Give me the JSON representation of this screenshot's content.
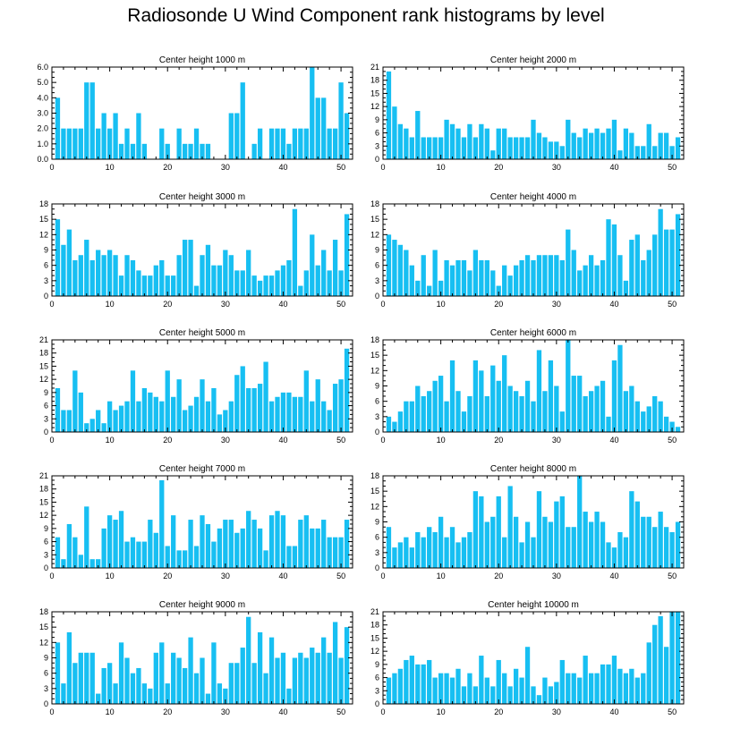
{
  "title": "Radiosonde U Wind Component rank histograms by level",
  "colors": {
    "bar": "#17bff2",
    "axis": "#000000"
  },
  "chart_data": [
    {
      "type": "bar",
      "title": "Center height 1000 m",
      "x": [
        1,
        2,
        3,
        4,
        5,
        6,
        7,
        8,
        9,
        10,
        11,
        12,
        13,
        14,
        15,
        16,
        17,
        18,
        19,
        20,
        21,
        22,
        23,
        24,
        25,
        26,
        27,
        28,
        29,
        30,
        31,
        32,
        33,
        34,
        35,
        36,
        37,
        38,
        39,
        40,
        41,
        42,
        43,
        44,
        45,
        46,
        47,
        48,
        49,
        50,
        51
      ],
      "values": [
        4,
        2,
        2,
        2,
        2,
        5,
        5,
        2,
        3,
        2,
        3,
        1,
        2,
        1,
        3,
        1,
        0,
        0,
        2,
        1,
        0,
        2,
        1,
        1,
        2,
        1,
        1,
        0,
        0,
        0,
        3,
        3,
        5,
        0,
        1,
        2,
        0,
        2,
        2,
        2,
        1,
        2,
        2,
        2,
        6,
        4,
        4,
        2,
        2,
        5,
        3
      ],
      "xlim": [
        0,
        52
      ],
      "ylim": [
        0,
        6
      ],
      "yticks": [
        0,
        1,
        2,
        3,
        4,
        5,
        6
      ],
      "ytick_labels": [
        "0.0",
        "1.0",
        "2.0",
        "3.0",
        "4.0",
        "5.0",
        "6.0"
      ],
      "xticks": [
        0,
        10,
        20,
        30,
        40,
        50
      ],
      "xtick_labels": [
        "0",
        "10",
        "20",
        "30",
        "40",
        "50"
      ]
    },
    {
      "type": "bar",
      "title": "Center height 2000 m",
      "x": [
        1,
        2,
        3,
        4,
        5,
        6,
        7,
        8,
        9,
        10,
        11,
        12,
        13,
        14,
        15,
        16,
        17,
        18,
        19,
        20,
        21,
        22,
        23,
        24,
        25,
        26,
        27,
        28,
        29,
        30,
        31,
        32,
        33,
        34,
        35,
        36,
        37,
        38,
        39,
        40,
        41,
        42,
        43,
        44,
        45,
        46,
        47,
        48,
        49,
        50,
        51
      ],
      "values": [
        20,
        12,
        8,
        7,
        5,
        11,
        5,
        5,
        5,
        5,
        9,
        8,
        7,
        5,
        8,
        5,
        8,
        7,
        2,
        7,
        7,
        5,
        5,
        5,
        5,
        9,
        6,
        5,
        4,
        4,
        3,
        9,
        6,
        5,
        7,
        6,
        7,
        6,
        7,
        9,
        2,
        7,
        6,
        3,
        3,
        8,
        3,
        6,
        6,
        3,
        5
      ],
      "xlim": [
        0,
        52
      ],
      "ylim": [
        0,
        21
      ],
      "yticks": [
        0,
        3,
        6,
        9,
        12,
        15,
        18,
        21
      ],
      "ytick_labels": [
        "0",
        "3",
        "6",
        "9",
        "12",
        "15",
        "18",
        "21"
      ],
      "xticks": [
        0,
        10,
        20,
        30,
        40,
        50
      ],
      "xtick_labels": [
        "0",
        "10",
        "20",
        "30",
        "40",
        "50"
      ]
    },
    {
      "type": "bar",
      "title": "Center height 3000 m",
      "x": [
        1,
        2,
        3,
        4,
        5,
        6,
        7,
        8,
        9,
        10,
        11,
        12,
        13,
        14,
        15,
        16,
        17,
        18,
        19,
        20,
        21,
        22,
        23,
        24,
        25,
        26,
        27,
        28,
        29,
        30,
        31,
        32,
        33,
        34,
        35,
        36,
        37,
        38,
        39,
        40,
        41,
        42,
        43,
        44,
        45,
        46,
        47,
        48,
        49,
        50,
        51
      ],
      "values": [
        15,
        10,
        13,
        7,
        8,
        11,
        7,
        9,
        8,
        9,
        8,
        4,
        8,
        7,
        5,
        4,
        4,
        6,
        7,
        4,
        4,
        8,
        11,
        11,
        2,
        8,
        10,
        6,
        6,
        9,
        8,
        5,
        5,
        9,
        4,
        3,
        4,
        4,
        5,
        6,
        7,
        17,
        2,
        5,
        12,
        6,
        9,
        5,
        11,
        5,
        16
      ],
      "xlim": [
        0,
        52
      ],
      "ylim": [
        0,
        18
      ],
      "yticks": [
        0,
        3,
        6,
        9,
        12,
        15,
        18
      ],
      "ytick_labels": [
        "0",
        "3",
        "6",
        "9",
        "12",
        "15",
        "18"
      ],
      "xticks": [
        0,
        10,
        20,
        30,
        40,
        50
      ],
      "xtick_labels": [
        "0",
        "10",
        "20",
        "30",
        "40",
        "50"
      ]
    },
    {
      "type": "bar",
      "title": "Center height 4000 m",
      "x": [
        1,
        2,
        3,
        4,
        5,
        6,
        7,
        8,
        9,
        10,
        11,
        12,
        13,
        14,
        15,
        16,
        17,
        18,
        19,
        20,
        21,
        22,
        23,
        24,
        25,
        26,
        27,
        28,
        29,
        30,
        31,
        32,
        33,
        34,
        35,
        36,
        37,
        38,
        39,
        40,
        41,
        42,
        43,
        44,
        45,
        46,
        47,
        48,
        49,
        50,
        51
      ],
      "values": [
        12,
        11,
        10,
        9,
        6,
        3,
        8,
        2,
        9,
        3,
        7,
        6,
        7,
        7,
        5,
        9,
        7,
        7,
        5,
        2,
        6,
        4,
        6,
        7,
        8,
        7,
        8,
        8,
        8,
        8,
        7,
        13,
        9,
        5,
        6,
        8,
        6,
        7,
        15,
        14,
        8,
        3,
        11,
        12,
        7,
        9,
        12,
        17,
        13,
        13,
        16
      ],
      "xlim": [
        0,
        52
      ],
      "ylim": [
        0,
        18
      ],
      "yticks": [
        0,
        3,
        6,
        9,
        12,
        15,
        18
      ],
      "ytick_labels": [
        "0",
        "3",
        "6",
        "9",
        "12",
        "15",
        "18"
      ],
      "xticks": [
        0,
        10,
        20,
        30,
        40,
        50
      ],
      "xtick_labels": [
        "0",
        "10",
        "20",
        "30",
        "40",
        "50"
      ]
    },
    {
      "type": "bar",
      "title": "Center height 5000 m",
      "x": [
        1,
        2,
        3,
        4,
        5,
        6,
        7,
        8,
        9,
        10,
        11,
        12,
        13,
        14,
        15,
        16,
        17,
        18,
        19,
        20,
        21,
        22,
        23,
        24,
        25,
        26,
        27,
        28,
        29,
        30,
        31,
        32,
        33,
        34,
        35,
        36,
        37,
        38,
        39,
        40,
        41,
        42,
        43,
        44,
        45,
        46,
        47,
        48,
        49,
        50,
        51
      ],
      "values": [
        10,
        5,
        5,
        14,
        9,
        2,
        3,
        5,
        2,
        7,
        5,
        6,
        7,
        14,
        7,
        10,
        9,
        8,
        7,
        14,
        8,
        12,
        5,
        6,
        8,
        12,
        7,
        10,
        4,
        5,
        7,
        13,
        15,
        10,
        10,
        11,
        16,
        7,
        8,
        9,
        9,
        8,
        8,
        14,
        7,
        12,
        7,
        5,
        11,
        12,
        19
      ],
      "xlim": [
        0,
        52
      ],
      "ylim": [
        0,
        21
      ],
      "yticks": [
        0,
        3,
        6,
        9,
        12,
        15,
        18,
        21
      ],
      "ytick_labels": [
        "0",
        "3",
        "6",
        "9",
        "12",
        "15",
        "18",
        "21"
      ],
      "xticks": [
        0,
        10,
        20,
        30,
        40,
        50
      ],
      "xtick_labels": [
        "0",
        "10",
        "20",
        "30",
        "40",
        "50"
      ]
    },
    {
      "type": "bar",
      "title": "Center height 6000 m",
      "x": [
        1,
        2,
        3,
        4,
        5,
        6,
        7,
        8,
        9,
        10,
        11,
        12,
        13,
        14,
        15,
        16,
        17,
        18,
        19,
        20,
        21,
        22,
        23,
        24,
        25,
        26,
        27,
        28,
        29,
        30,
        31,
        32,
        33,
        34,
        35,
        36,
        37,
        38,
        39,
        40,
        41,
        42,
        43,
        44,
        45,
        46,
        47,
        48,
        49,
        50,
        51
      ],
      "values": [
        3,
        2,
        4,
        6,
        6,
        9,
        7,
        8,
        10,
        11,
        6,
        14,
        8,
        4,
        7,
        14,
        12,
        7,
        13,
        10,
        15,
        9,
        8,
        7,
        10,
        6,
        16,
        8,
        14,
        9,
        4,
        18,
        11,
        11,
        7,
        8,
        9,
        10,
        3,
        14,
        17,
        8,
        9,
        6,
        4,
        5,
        7,
        6,
        3,
        2,
        1
      ],
      "xlim": [
        0,
        52
      ],
      "ylim": [
        0,
        18
      ],
      "yticks": [
        0,
        3,
        6,
        9,
        12,
        15,
        18
      ],
      "ytick_labels": [
        "0",
        "3",
        "6",
        "9",
        "12",
        "15",
        "18"
      ],
      "xticks": [
        0,
        10,
        20,
        30,
        40,
        50
      ],
      "xtick_labels": [
        "0",
        "10",
        "20",
        "30",
        "40",
        "50"
      ]
    },
    {
      "type": "bar",
      "title": "Center height 7000 m",
      "x": [
        1,
        2,
        3,
        4,
        5,
        6,
        7,
        8,
        9,
        10,
        11,
        12,
        13,
        14,
        15,
        16,
        17,
        18,
        19,
        20,
        21,
        22,
        23,
        24,
        25,
        26,
        27,
        28,
        29,
        30,
        31,
        32,
        33,
        34,
        35,
        36,
        37,
        38,
        39,
        40,
        41,
        42,
        43,
        44,
        45,
        46,
        47,
        48,
        49,
        50,
        51
      ],
      "values": [
        7,
        2,
        10,
        7,
        3,
        14,
        2,
        2,
        9,
        12,
        11,
        13,
        6,
        7,
        6,
        6,
        11,
        8,
        20,
        5,
        12,
        4,
        4,
        11,
        5,
        12,
        10,
        6,
        9,
        11,
        11,
        8,
        9,
        13,
        11,
        9,
        4,
        12,
        13,
        12,
        5,
        5,
        11,
        12,
        9,
        9,
        11,
        7,
        7,
        7,
        11
      ],
      "xlim": [
        0,
        52
      ],
      "ylim": [
        0,
        21
      ],
      "yticks": [
        0,
        3,
        6,
        9,
        12,
        15,
        18,
        21
      ],
      "ytick_labels": [
        "0",
        "3",
        "6",
        "9",
        "12",
        "15",
        "18",
        "21"
      ],
      "xticks": [
        0,
        10,
        20,
        30,
        40,
        50
      ],
      "xtick_labels": [
        "0",
        "10",
        "20",
        "30",
        "40",
        "50"
      ]
    },
    {
      "type": "bar",
      "title": "Center height 8000 m",
      "x": [
        1,
        2,
        3,
        4,
        5,
        6,
        7,
        8,
        9,
        10,
        11,
        12,
        13,
        14,
        15,
        16,
        17,
        18,
        19,
        20,
        21,
        22,
        23,
        24,
        25,
        26,
        27,
        28,
        29,
        30,
        31,
        32,
        33,
        34,
        35,
        36,
        37,
        38,
        39,
        40,
        41,
        42,
        43,
        44,
        45,
        46,
        47,
        48,
        49,
        50,
        51
      ],
      "values": [
        8,
        4,
        5,
        6,
        4,
        7,
        6,
        8,
        7,
        10,
        6,
        8,
        5,
        6,
        7,
        15,
        14,
        9,
        10,
        14,
        6,
        16,
        10,
        5,
        9,
        6,
        15,
        10,
        9,
        13,
        14,
        8,
        8,
        18,
        11,
        9,
        11,
        9,
        5,
        4,
        7,
        6,
        15,
        13,
        10,
        10,
        8,
        11,
        8,
        7,
        9
      ],
      "xlim": [
        0,
        52
      ],
      "ylim": [
        0,
        18
      ],
      "yticks": [
        0,
        3,
        6,
        9,
        12,
        15,
        18
      ],
      "ytick_labels": [
        "0",
        "3",
        "6",
        "9",
        "12",
        "15",
        "18"
      ],
      "xticks": [
        0,
        10,
        20,
        30,
        40,
        50
      ],
      "xtick_labels": [
        "0",
        "10",
        "20",
        "30",
        "40",
        "50"
      ]
    },
    {
      "type": "bar",
      "title": "Center height 9000 m",
      "x": [
        1,
        2,
        3,
        4,
        5,
        6,
        7,
        8,
        9,
        10,
        11,
        12,
        13,
        14,
        15,
        16,
        17,
        18,
        19,
        20,
        21,
        22,
        23,
        24,
        25,
        26,
        27,
        28,
        29,
        30,
        31,
        32,
        33,
        34,
        35,
        36,
        37,
        38,
        39,
        40,
        41,
        42,
        43,
        44,
        45,
        46,
        47,
        48,
        49,
        50,
        51
      ],
      "values": [
        12,
        4,
        14,
        8,
        10,
        10,
        10,
        2,
        7,
        8,
        4,
        12,
        9,
        6,
        7,
        4,
        3,
        10,
        12,
        4,
        10,
        9,
        7,
        13,
        6,
        9,
        2,
        12,
        4,
        3,
        8,
        8,
        11,
        17,
        8,
        14,
        6,
        13,
        9,
        10,
        3,
        9,
        10,
        9,
        11,
        10,
        13,
        10,
        16,
        9,
        15
      ],
      "xlim": [
        0,
        52
      ],
      "ylim": [
        0,
        18
      ],
      "yticks": [
        0,
        3,
        6,
        9,
        12,
        15,
        18
      ],
      "ytick_labels": [
        "0",
        "3",
        "6",
        "9",
        "12",
        "15",
        "18"
      ],
      "xticks": [
        0,
        10,
        20,
        30,
        40,
        50
      ],
      "xtick_labels": [
        "0",
        "10",
        "20",
        "30",
        "40",
        "50"
      ]
    },
    {
      "type": "bar",
      "title": "Center height 10000 m",
      "x": [
        1,
        2,
        3,
        4,
        5,
        6,
        7,
        8,
        9,
        10,
        11,
        12,
        13,
        14,
        15,
        16,
        17,
        18,
        19,
        20,
        21,
        22,
        23,
        24,
        25,
        26,
        27,
        28,
        29,
        30,
        31,
        32,
        33,
        34,
        35,
        36,
        37,
        38,
        39,
        40,
        41,
        42,
        43,
        44,
        45,
        46,
        47,
        48,
        49,
        50,
        51
      ],
      "values": [
        6,
        7,
        8,
        10,
        11,
        9,
        9,
        10,
        6,
        7,
        7,
        6,
        8,
        4,
        7,
        4,
        11,
        6,
        4,
        10,
        7,
        4,
        8,
        6,
        13,
        4,
        2,
        6,
        4,
        5,
        10,
        7,
        7,
        6,
        11,
        7,
        7,
        9,
        9,
        11,
        8,
        7,
        8,
        6,
        7,
        14,
        18,
        20,
        13,
        21,
        21
      ],
      "xlim": [
        0,
        52
      ],
      "ylim": [
        0,
        21
      ],
      "yticks": [
        0,
        3,
        6,
        9,
        12,
        15,
        18,
        21
      ],
      "ytick_labels": [
        "0",
        "3",
        "6",
        "9",
        "12",
        "15",
        "18",
        "21"
      ],
      "xticks": [
        0,
        10,
        20,
        30,
        40,
        50
      ],
      "xtick_labels": [
        "0",
        "10",
        "20",
        "30",
        "40",
        "50"
      ]
    }
  ]
}
